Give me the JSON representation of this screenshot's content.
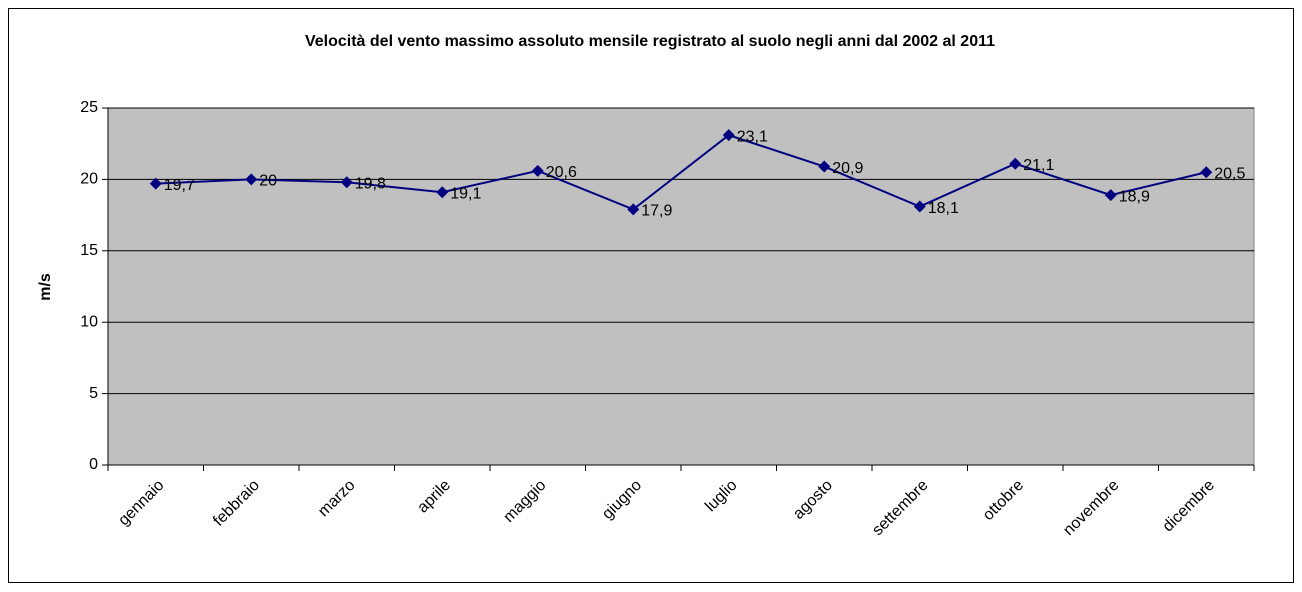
{
  "chart_data": {
    "type": "line",
    "title": "Velocità del vento massimo assoluto mensile registrato al suolo negli anni dal 2002 al 2011",
    "y_label": "m/s",
    "categories": [
      "gennaio",
      "febbraio",
      "marzo",
      "aprile",
      "maggio",
      "giugno",
      "luglio",
      "agosto",
      "settembre",
      "ottobre",
      "novembre",
      "dicembre"
    ],
    "series": [
      {
        "name": "m/s",
        "color": "#000080",
        "values": [
          19.7,
          20,
          19.8,
          19.1,
          20.6,
          17.9,
          23.1,
          20.9,
          18.1,
          21.1,
          18.9,
          20.5
        ],
        "value_labels": [
          "19,7",
          "20",
          "19,8",
          "19,1",
          "20,6",
          "17,9",
          "23,1",
          "20,9",
          "18,1",
          "21,1",
          "18,9",
          "20,5"
        ]
      }
    ],
    "ylim": [
      0,
      25
    ],
    "yticks": [
      0,
      5,
      10,
      15,
      20,
      25
    ],
    "grid": true,
    "plot_background": "#c0c0c0"
  }
}
